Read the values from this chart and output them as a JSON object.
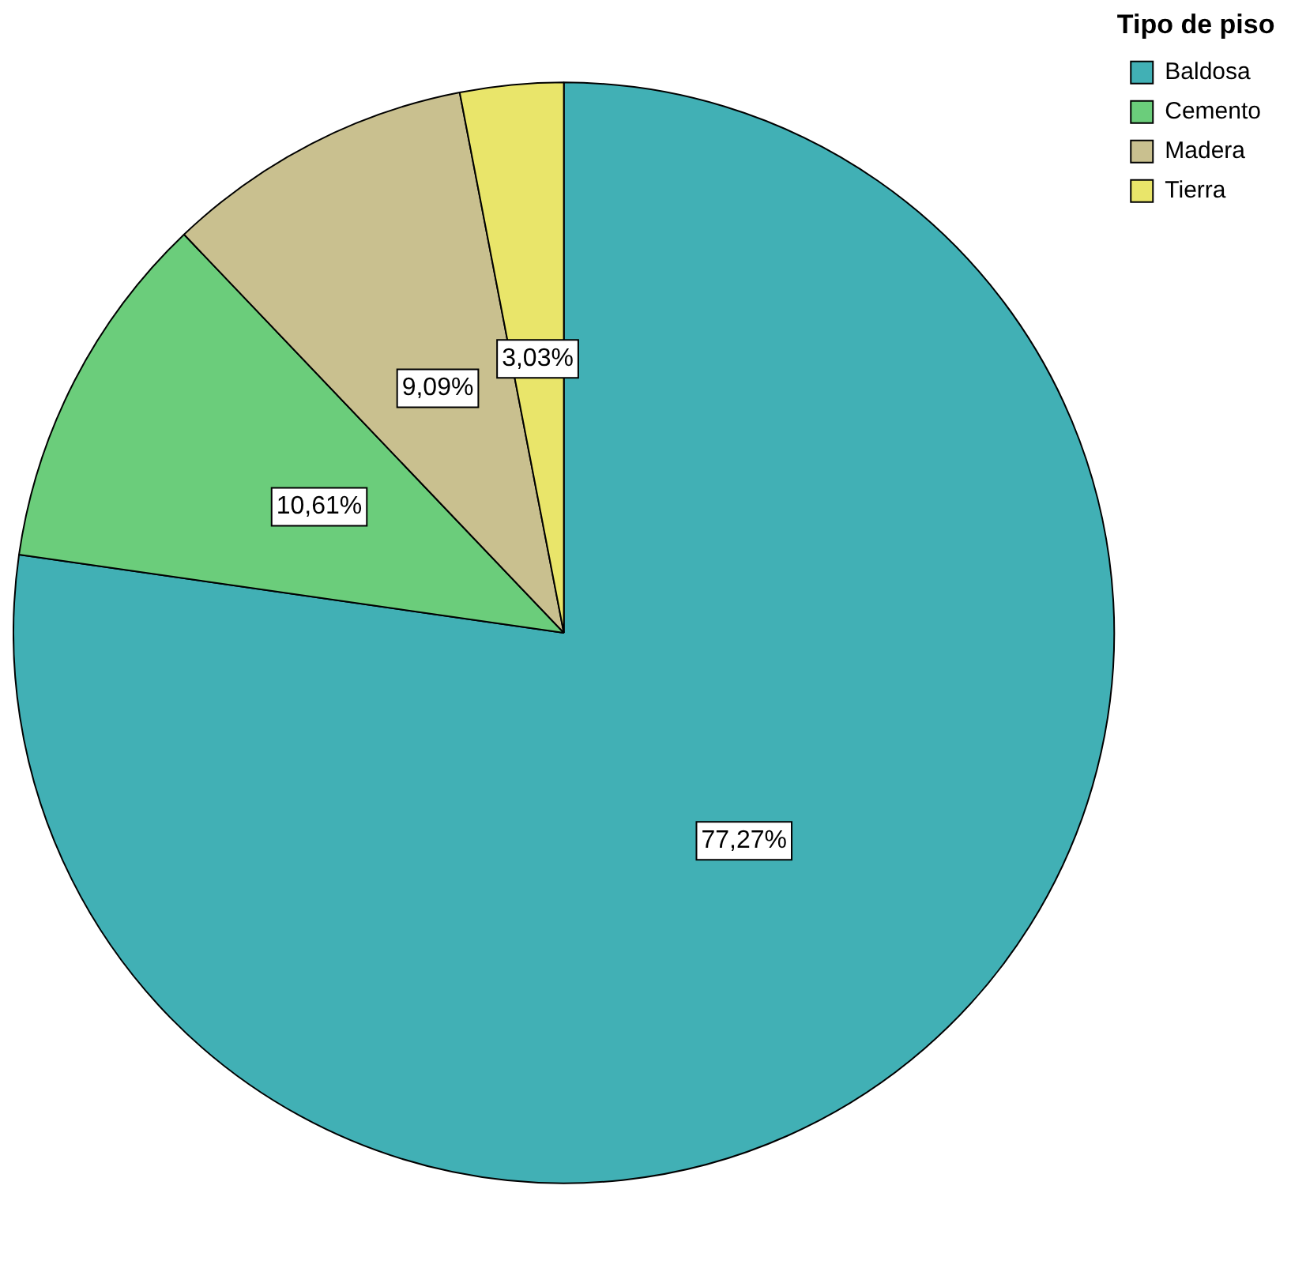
{
  "chart_data": {
    "type": "pie",
    "legend_title": "Tipo de piso",
    "categories": [
      "Baldosa",
      "Cemento",
      "Madera",
      "Tierra"
    ],
    "values": [
      77.27,
      10.61,
      9.09,
      3.03
    ],
    "colors": [
      "#41b0b5",
      "#6bcd7b",
      "#c9c08f",
      "#e9e56a"
    ],
    "value_labels": [
      "77,27%",
      "10,61%",
      "9,09%",
      "3,03%"
    ],
    "legend": "top right"
  }
}
